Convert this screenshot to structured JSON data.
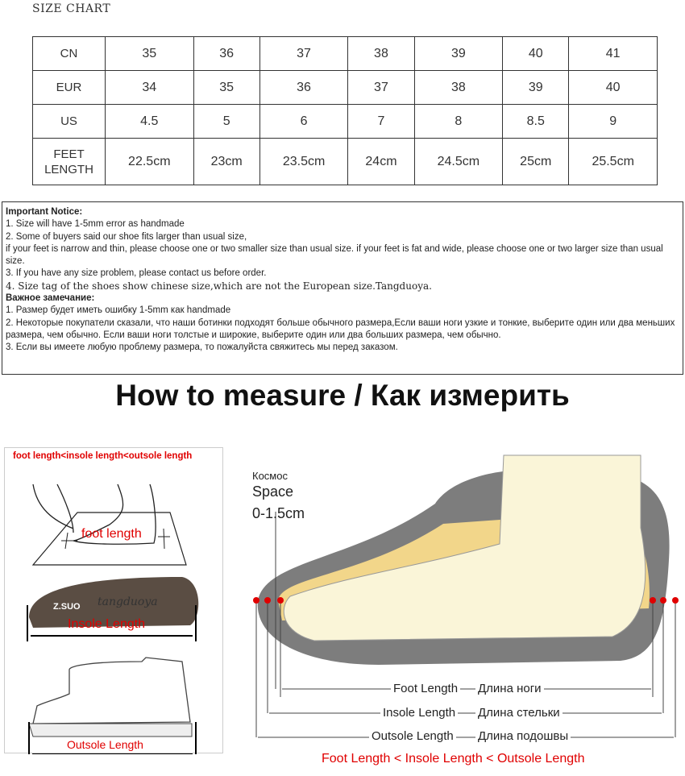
{
  "title": "SIZE CHART",
  "size_table": {
    "rows": [
      {
        "label": "CN",
        "values": [
          "35",
          "36",
          "37",
          "38",
          "39",
          "40",
          "41"
        ]
      },
      {
        "label": "EUR",
        "values": [
          "34",
          "35",
          "36",
          "37",
          "38",
          "39",
          "40"
        ]
      },
      {
        "label": "US",
        "values": [
          "4.5",
          "5",
          "6",
          "7",
          "8",
          "8.5",
          "9"
        ]
      },
      {
        "label": "FEET LENGTH",
        "values": [
          "22.5cm",
          "23cm",
          "23.5cm",
          "24cm",
          "24.5cm",
          "25cm",
          "25.5cm"
        ]
      }
    ]
  },
  "notice": {
    "en_heading": "Important Notice:",
    "en_lines": [
      "1. Size will have 1-5mm error as handmade",
      "2. Some of buyers said our shoe fits larger than usual size,",
      "if your feet is narrow and thin, please choose one or two smaller size than usual size. if your feet is fat and wide, please choose one or two larger size than usual size.",
      "3. If you have any size problem, please contact us before order."
    ],
    "en_line4": "4. Size tag of the shoes show chinese size,which are not the European size.Tangduoya.",
    "ru_heading": "Важное замечание:",
    "ru_lines": [
      "1. Размер будет иметь ошибку 1-5mm как handmade",
      "2. Некоторые покупатели сказали, что наши ботинки подходят больше обычного размера,Если ваши ноги узкие и тонкие, выберите один или два меньших размера, чем обычно. Если ваши ноги толстые и широкие, выберите один или два больших размера, чем обычно.",
      "3. Если вы имеете любую проблему размера, то пожалуйста свяжитесь мы перед заказом."
    ]
  },
  "how_to": "How to measure / Как измерить",
  "left_panel": {
    "top": "foot length<insole length<outsole length",
    "foot": "foot length",
    "insole": "Insole Length",
    "outsole": "Outsole Length",
    "insole_brand": "Z.SUO",
    "watermark": "tangduoya"
  },
  "diagram": {
    "space_ru": "Космос",
    "space_en": "Space",
    "space_value": "0-1.5cm",
    "foot_en": "Foot Length",
    "foot_ru": "Длина ноги",
    "insole_en": "Insole Length",
    "insole_ru": "Длина стельки",
    "outsole_en": "Outsole Length",
    "outsole_ru": "Длина подошвы",
    "bottom": "Foot Length < Insole Length < Outsole Length",
    "accent": "#e00000"
  }
}
